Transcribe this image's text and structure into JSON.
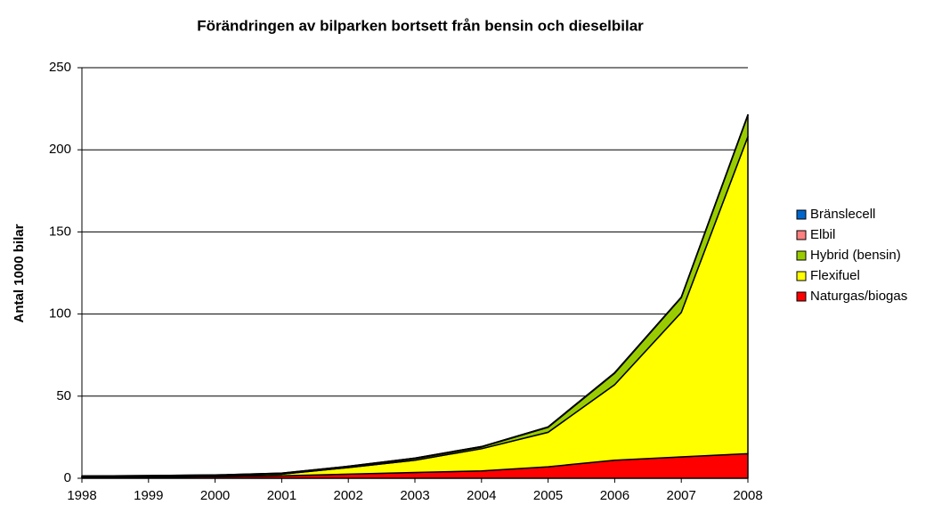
{
  "chart_data": {
    "type": "area",
    "stacked": true,
    "title": "Förändringen av bilparken bortsett från bensin och dieselbilar",
    "ylabel": "Antal 1000 bilar",
    "categories": [
      "1998",
      "1999",
      "2000",
      "2001",
      "2002",
      "2003",
      "2004",
      "2005",
      "2006",
      "2007",
      "2008"
    ],
    "series": [
      {
        "name": "Naturgas/biogas",
        "color": "#ff0000",
        "values": [
          0.5,
          0.7,
          1,
          1.5,
          2.5,
          3.5,
          4.5,
          7,
          11,
          13,
          15
        ]
      },
      {
        "name": "Flexifuel",
        "color": "#ffff00",
        "values": [
          0.5,
          0.5,
          0.5,
          1,
          4,
          7.5,
          13.5,
          21,
          46,
          88,
          193
        ]
      },
      {
        "name": "Hybrid (bensin)",
        "color": "#99cc00",
        "values": [
          0,
          0,
          0.1,
          0.3,
          0.5,
          1,
          1,
          3,
          7,
          9,
          13
        ]
      },
      {
        "name": "Elbil",
        "color": "#ff8080",
        "values": [
          0.4,
          0.4,
          0.4,
          0.3,
          0.3,
          0.3,
          0.3,
          0.3,
          0.3,
          0.3,
          0.3
        ]
      },
      {
        "name": "Bränslecell",
        "color": "#0066cc",
        "values": [
          0,
          0,
          0,
          0,
          0,
          0,
          0,
          0,
          0,
          0,
          0
        ]
      }
    ],
    "ylim": [
      0,
      250
    ],
    "yticks": [
      0,
      50,
      100,
      150,
      200,
      250
    ],
    "grid": true,
    "legend": "right"
  }
}
